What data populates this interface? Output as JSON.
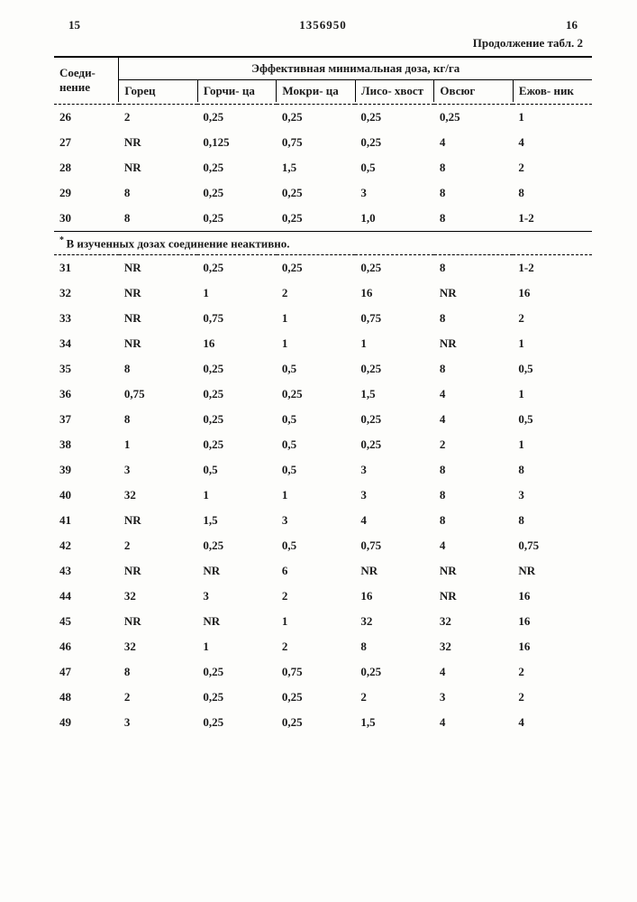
{
  "header": {
    "left_page_no": "15",
    "doc_no": "1356950",
    "right_page_no": "16",
    "continuation": "Продолжение табл. 2"
  },
  "table": {
    "id_header": "Соеди-\nнение",
    "group_header": "Эффективная минимальная доза, кг/га",
    "columns": [
      "Горец",
      "Горчи-\nца",
      "Мокри-\nца",
      "Лисо-\nхвост",
      "Овсюг",
      "Ежов-\nник"
    ],
    "footnote": "В изученных дозах соединение неактивно.",
    "rows_top": [
      {
        "id": "26",
        "v": [
          "2",
          "0,25",
          "0,25",
          "0,25",
          "0,25",
          "1"
        ]
      },
      {
        "id": "27",
        "v": [
          "NR",
          "0,125",
          "0,75",
          "0,25",
          "4",
          "4"
        ]
      },
      {
        "id": "28",
        "v": [
          "NR",
          "0,25",
          "1,5",
          "0,5",
          "8",
          "2"
        ]
      },
      {
        "id": "29",
        "v": [
          "8",
          "0,25",
          "0,25",
          "3",
          "8",
          "8"
        ]
      },
      {
        "id": "30",
        "v": [
          "8",
          "0,25",
          "0,25",
          "1,0",
          "8",
          "1-2"
        ]
      }
    ],
    "rows_bottom": [
      {
        "id": "31",
        "v": [
          "NR",
          "0,25",
          "0,25",
          "0,25",
          "8",
          "1-2"
        ]
      },
      {
        "id": "32",
        "v": [
          "NR",
          "1",
          "2",
          "16",
          "NR",
          "16"
        ]
      },
      {
        "id": "33",
        "v": [
          "NR",
          "0,75",
          "1",
          "0,75",
          "8",
          "2"
        ]
      },
      {
        "id": "34",
        "v": [
          "NR",
          "16",
          "1",
          "1",
          "NR",
          "1"
        ]
      },
      {
        "id": "35",
        "v": [
          "8",
          "0,25",
          "0,5",
          "0,25",
          "8",
          "0,5"
        ]
      },
      {
        "id": "36",
        "v": [
          "0,75",
          "0,25",
          "0,25",
          "1,5",
          "4",
          "1"
        ]
      },
      {
        "id": "37",
        "v": [
          "8",
          "0,25",
          "0,5",
          "0,25",
          "4",
          "0,5"
        ]
      },
      {
        "id": "38",
        "v": [
          "1",
          "0,25",
          "0,5",
          "0,25",
          "2",
          "1"
        ]
      },
      {
        "id": "39",
        "v": [
          "3",
          "0,5",
          "0,5",
          "3",
          "8",
          "8"
        ]
      },
      {
        "id": "40",
        "v": [
          "32",
          "1",
          "1",
          "3",
          "8",
          "3"
        ]
      },
      {
        "id": "41",
        "v": [
          "NR",
          "1,5",
          "3",
          "4",
          "8",
          "8"
        ]
      },
      {
        "id": "42",
        "v": [
          "2",
          "0,25",
          "0,5",
          "0,75",
          "4",
          "0,75"
        ]
      },
      {
        "id": "43",
        "v": [
          "NR",
          "NR",
          "6",
          "NR",
          "NR",
          "NR"
        ]
      },
      {
        "id": "44",
        "v": [
          "32",
          "3",
          "2",
          "16",
          "NR",
          "16"
        ]
      },
      {
        "id": "45",
        "v": [
          "NR",
          "NR",
          "1",
          "32",
          "32",
          "16"
        ]
      },
      {
        "id": "46",
        "v": [
          "32",
          "1",
          "2",
          "8",
          "32",
          "16"
        ]
      },
      {
        "id": "47",
        "v": [
          "8",
          "0,25",
          "0,75",
          "0,25",
          "4",
          "2"
        ]
      },
      {
        "id": "48",
        "v": [
          "2",
          "0,25",
          "0,25",
          "2",
          "3",
          "2"
        ]
      },
      {
        "id": "49",
        "v": [
          "3",
          "0,25",
          "0,25",
          "1,5",
          "4",
          "4"
        ]
      }
    ]
  },
  "style": {
    "font_family": "Times New Roman, serif",
    "font_size_pt": 10,
    "font_weight": "bold",
    "text_color": "#1a1a1a",
    "background_color": "#fdfdfb",
    "rule_color": "#000000"
  }
}
